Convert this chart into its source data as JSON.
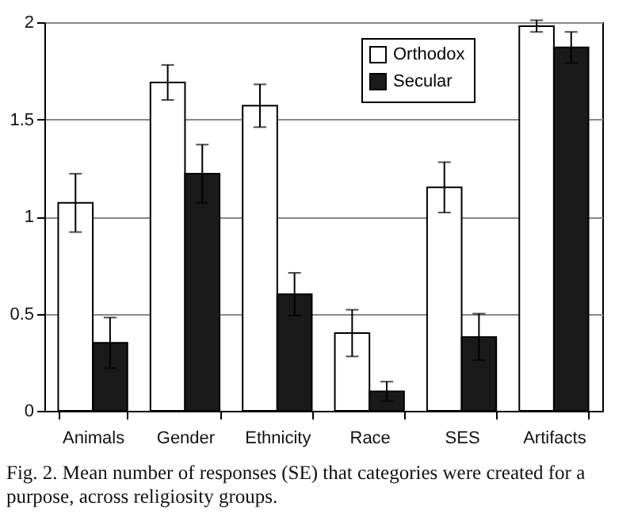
{
  "chart_data": {
    "type": "bar",
    "categories": [
      "Animals",
      "Gender",
      "Ethnicity",
      "Race",
      "SES",
      "Artifacts"
    ],
    "series": [
      {
        "name": "Orthodox",
        "color": "#ffffff",
        "values": [
          1.07,
          1.69,
          1.57,
          0.4,
          1.15,
          1.98
        ],
        "errors": [
          0.15,
          0.09,
          0.11,
          0.12,
          0.13,
          0.03
        ]
      },
      {
        "name": "Secular",
        "color": "#1a1a1a",
        "values": [
          0.35,
          1.22,
          0.6,
          0.1,
          0.38,
          1.87
        ],
        "errors": [
          0.13,
          0.15,
          0.11,
          0.05,
          0.12,
          0.08
        ]
      }
    ],
    "ylim": [
      0,
      2
    ],
    "yticks": [
      0,
      0.5,
      1,
      1.5,
      2
    ],
    "grid": "y",
    "legend": "top right",
    "annotations": [
      "Fig. 2. Mean number of responses (SE) that categories were created for a purpose, across religiosity groups."
    ]
  }
}
